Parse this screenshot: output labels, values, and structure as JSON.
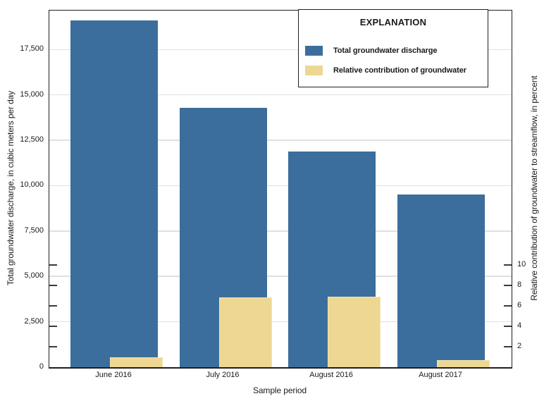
{
  "figure": {
    "legend": {
      "title": "EXPLANATION",
      "items": [
        {
          "label": "Total groundwater discharge",
          "color": "#3B6E9C"
        },
        {
          "label": "Relative contribution of groundwater",
          "color": "#EDD792"
        }
      ]
    }
  },
  "chart_data": {
    "type": "bar",
    "categories": [
      "June 2016",
      "July 2016",
      "August 2016",
      "August 2017"
    ],
    "series": [
      {
        "name": "Total groundwater discharge",
        "axis": "left",
        "color": "#3B6E9C",
        "values": [
          19100,
          14300,
          11900,
          9500
        ]
      },
      {
        "name": "Relative contribution of groundwater",
        "axis": "right",
        "color": "#EDD792",
        "values": [
          1.0,
          6.8,
          6.9,
          0.7
        ]
      }
    ],
    "left_axis": {
      "label": "Total groundwater discharge, in cubic meters per day",
      "ticks": [
        0,
        2500,
        5000,
        7500,
        10000,
        12500,
        15000,
        17500
      ],
      "tick_labels": [
        "0",
        "2,500",
        "5,000",
        "7,500",
        "10,000",
        "12,500",
        "15,000",
        "17,500"
      ],
      "ylim": [
        0,
        19650
      ]
    },
    "right_axis": {
      "label": "Relative contribution of groundwater to streamflow, in percent",
      "ticks": [
        2,
        4,
        6,
        8,
        10
      ],
      "tick_labels": [
        "2",
        "4",
        "6",
        "8",
        "10"
      ],
      "ylim": [
        0,
        34.9
      ]
    },
    "x_axis": {
      "label": "Sample period"
    },
    "grid": "horizontal",
    "legend_position": "top-right-inside"
  },
  "colors": {
    "bar_blue": "#3B6E9C",
    "bar_yellow": "#EDD792",
    "gridline": "#E0E0E0",
    "spine": "#1F1F1F",
    "text": "#1A1A1A",
    "background": "#FFFFFF"
  }
}
